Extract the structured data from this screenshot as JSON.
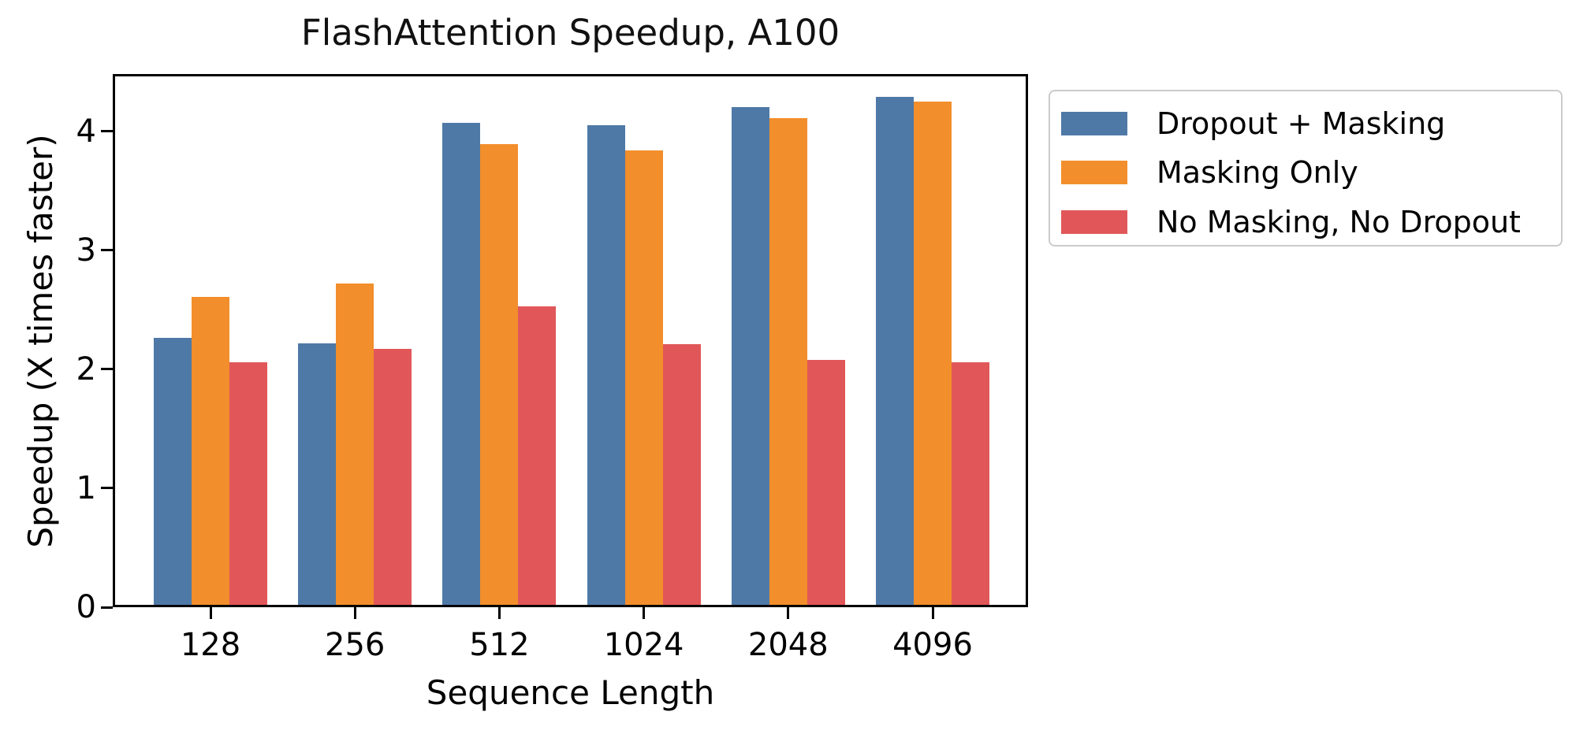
{
  "chart_data": {
    "type": "bar",
    "title": "FlashAttention Speedup, A100",
    "xlabel": "Sequence Length",
    "ylabel": "Speedup (X times faster)",
    "categories": [
      "128",
      "256",
      "512",
      "1024",
      "2048",
      "4096"
    ],
    "series": [
      {
        "name": "Dropout + Masking",
        "color": "#4E79A7",
        "values": [
          2.24,
          2.2,
          4.05,
          4.03,
          4.18,
          4.27
        ]
      },
      {
        "name": "Masking Only",
        "color": "#F28E2B",
        "values": [
          2.59,
          2.7,
          3.87,
          3.82,
          4.09,
          4.23
        ]
      },
      {
        "name": "No Masking, No Dropout",
        "color": "#E15759",
        "values": [
          2.04,
          2.15,
          2.51,
          2.19,
          2.06,
          2.04
        ]
      }
    ],
    "yticks": [
      "0",
      "1",
      "2",
      "3",
      "4"
    ],
    "ylim": [
      0,
      4.48
    ],
    "grid": false,
    "legend": {
      "position": "outside-upper-right",
      "border_color": "#cbcbcb",
      "background": "#ffffff"
    }
  },
  "colors": {
    "background": "#ffffff",
    "text": "#000000",
    "axis": "#000000"
  }
}
